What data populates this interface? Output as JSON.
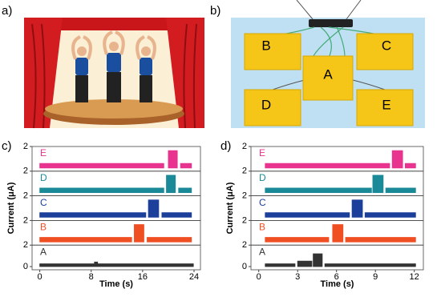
{
  "panels": {
    "a": {
      "label": "a)"
    },
    "b": {
      "label": "b)",
      "pads": [
        "B",
        "C",
        "A",
        "D",
        "E"
      ]
    }
  },
  "chart_data": [
    {
      "type": "line",
      "panel_label": "c)",
      "xlabel": "Time (s)",
      "ylabel": "Current (μA)",
      "xlim": [
        -1.2,
        25
      ],
      "xticks": [
        0,
        8,
        16,
        24
      ],
      "series": [
        {
          "name": "E",
          "color": "#e8338f",
          "ylim": [
            0,
            2
          ],
          "yticks": [
            2
          ],
          "x": [
            0,
            19.3,
            null,
            20,
            21.4,
            null,
            21.9,
            23.6
          ],
          "values": [
            0.5,
            0.5,
            null,
            1.9,
            1.9,
            null,
            0.5,
            0.5
          ]
        },
        {
          "name": "D",
          "color": "#1a8a99",
          "ylim": [
            0,
            2
          ],
          "yticks": [
            2
          ],
          "x": [
            0,
            19.3,
            null,
            19.7,
            21.1,
            null,
            21.6,
            23.6
          ],
          "values": [
            0.5,
            0.5,
            null,
            1.9,
            1.9,
            null,
            0.5,
            0.5
          ]
        },
        {
          "name": "C",
          "color": "#1b3f9a",
          "ylim": [
            0,
            2
          ],
          "yticks": [
            2
          ],
          "x": [
            0,
            16.5,
            null,
            16.9,
            18.5,
            null,
            19,
            23.6
          ],
          "values": [
            0.5,
            0.5,
            null,
            1.9,
            1.9,
            null,
            0.5,
            0.5
          ]
        },
        {
          "name": "B",
          "color": "#f04e23",
          "ylim": [
            0,
            2
          ],
          "yticks": [
            2
          ],
          "x": [
            0,
            14.3,
            null,
            14.7,
            16.2,
            null,
            16.7,
            23.6
          ],
          "values": [
            0.5,
            0.5,
            null,
            1.9,
            1.9,
            null,
            0.5,
            0.5
          ]
        },
        {
          "name": "A",
          "color": "#333333",
          "ylim": [
            0,
            2
          ],
          "yticks": [
            0,
            2
          ],
          "x": [
            0,
            8.5,
            8.5,
            9,
            9,
            23.9
          ],
          "values": [
            0.3,
            0.3,
            0.5,
            0.5,
            0.3,
            0.3
          ]
        }
      ]
    },
    {
      "type": "line",
      "panel_label": "d)",
      "xlabel": "Time (s)",
      "ylabel": "Current (μA)",
      "xlim": [
        -0.6,
        12.7
      ],
      "xticks": [
        0,
        3,
        6,
        9,
        12
      ],
      "series": [
        {
          "name": "E",
          "color": "#e8338f",
          "ylim": [
            0,
            2
          ],
          "yticks": [
            2
          ],
          "x": [
            0.5,
            10.1,
            null,
            10.3,
            11.1,
            null,
            11.3,
            12.1
          ],
          "values": [
            0.5,
            0.5,
            null,
            1.9,
            1.9,
            null,
            0.5,
            0.5
          ]
        },
        {
          "name": "D",
          "color": "#1a8a99",
          "ylim": [
            0,
            2
          ],
          "yticks": [
            2
          ],
          "x": [
            0.5,
            8.7,
            null,
            8.8,
            9.6,
            null,
            9.8,
            12.1
          ],
          "values": [
            0.5,
            0.5,
            null,
            1.9,
            1.9,
            null,
            0.5,
            0.5
          ]
        },
        {
          "name": "C",
          "color": "#1b3f9a",
          "ylim": [
            0,
            2
          ],
          "yticks": [
            2
          ],
          "x": [
            0.5,
            7,
            null,
            7.2,
            8,
            null,
            8.2,
            12.1
          ],
          "values": [
            0.5,
            0.5,
            null,
            1.9,
            1.9,
            null,
            0.5,
            0.5
          ]
        },
        {
          "name": "B",
          "color": "#f04e23",
          "ylim": [
            0,
            2
          ],
          "yticks": [
            2
          ],
          "x": [
            0.5,
            5.4,
            null,
            5.7,
            6.5,
            null,
            6.7,
            12.1
          ],
          "values": [
            0.5,
            0.5,
            null,
            1.9,
            1.9,
            null,
            0.5,
            0.5
          ]
        },
        {
          "name": "A",
          "color": "#333333",
          "ylim": [
            0,
            2
          ],
          "yticks": [
            0,
            2
          ],
          "x": [
            0.5,
            2.8,
            null,
            3,
            4.1,
            null,
            4.2,
            4.9,
            null,
            5.1,
            12.1
          ],
          "values": [
            0.3,
            0.3,
            null,
            0.6,
            0.6,
            null,
            1.4,
            1.4,
            null,
            0.3,
            0.3
          ]
        }
      ]
    }
  ]
}
